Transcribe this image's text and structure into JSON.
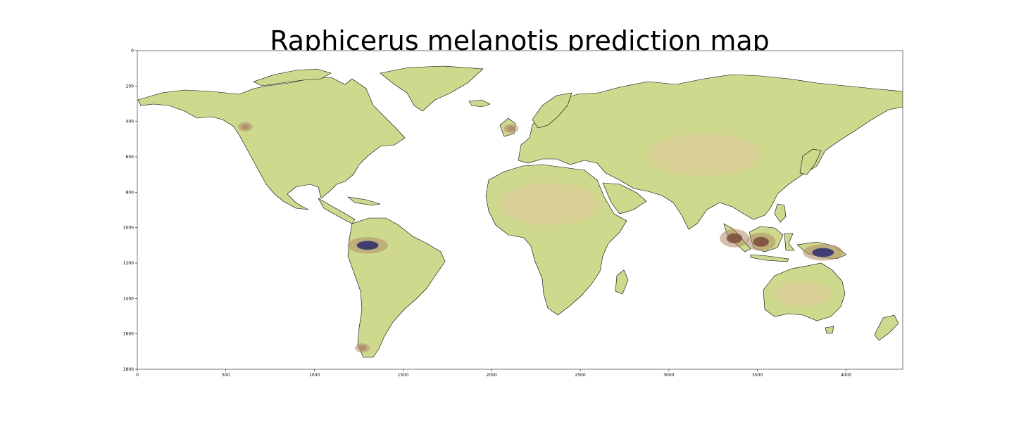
{
  "title": "Raphicerus melanotis prediction map",
  "colors": {
    "land": "#cfd98e",
    "land_dry": "#ddc99a",
    "coast": "#000000",
    "low": "#b08a6a",
    "mid": "#7a4a3a",
    "high": "#2a2a6e",
    "frame": "#555555"
  },
  "chart_data": {
    "type": "heatmap",
    "title": "Raphicerus melanotis prediction map",
    "xlabel": "",
    "ylabel": "",
    "xlim": [
      0,
      4320
    ],
    "ylim": [
      1800,
      0
    ],
    "x_ticks": [
      0,
      500,
      1000,
      1500,
      2000,
      2500,
      3000,
      3500,
      4000
    ],
    "y_ticks": [
      0,
      200,
      400,
      600,
      800,
      1000,
      1200,
      1400,
      1600,
      1800
    ],
    "hotspots": [
      {
        "region": "western Amazon",
        "x": 1300,
        "y": 1100,
        "level": "high"
      },
      {
        "region": "Borneo",
        "x": 3520,
        "y": 1080,
        "level": "mid"
      },
      {
        "region": "New Guinea",
        "x": 3870,
        "y": 1140,
        "level": "high"
      },
      {
        "region": "Sumatra",
        "x": 3370,
        "y": 1060,
        "level": "mid"
      },
      {
        "region": "Pacific Northwest coast",
        "x": 610,
        "y": 430,
        "level": "low"
      },
      {
        "region": "southern Andes",
        "x": 1270,
        "y": 1680,
        "level": "low"
      },
      {
        "region": "British Isles",
        "x": 2110,
        "y": 440,
        "level": "low"
      }
    ]
  }
}
